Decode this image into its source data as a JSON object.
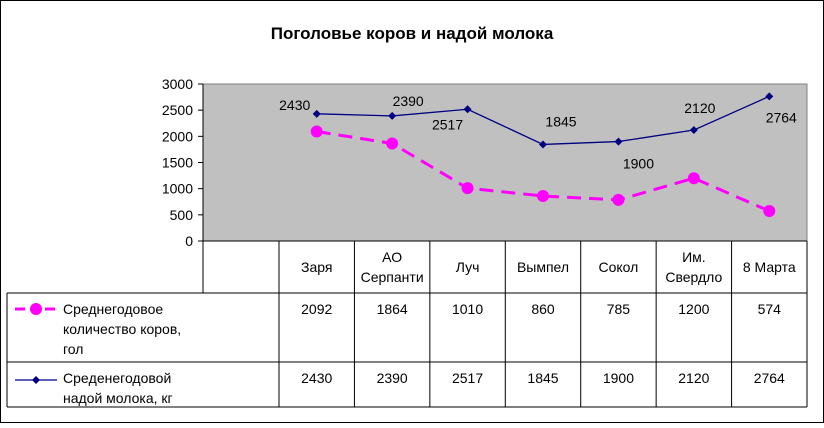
{
  "chart_data": {
    "type": "line",
    "title": "Поголовье коров и надой молока",
    "categories": [
      "Заря",
      "АО Серпанти",
      "Луч",
      "Вымпел",
      "Сокол",
      "Им. Свердло",
      "8 Марта"
    ],
    "category_lines": [
      [
        "Заря"
      ],
      [
        "АО",
        "Серпанти"
      ],
      [
        "Луч"
      ],
      [
        "Вымпел"
      ],
      [
        "Сокол"
      ],
      [
        "Им.",
        "Свердло"
      ],
      [
        "8 Марта"
      ]
    ],
    "ylim": [
      0,
      3000
    ],
    "yticks": [
      0,
      500,
      1000,
      1500,
      2000,
      2500,
      3000
    ],
    "plot_background": "#c0c0c0",
    "data_table": true,
    "series": [
      {
        "name": "Среднегодовое количество коров, гол",
        "name_lines": [
          "Среднегодовое",
          "количество коров,",
          " гол"
        ],
        "values": [
          2092,
          1864,
          1010,
          860,
          785,
          1200,
          574
        ],
        "color": "#ff00ff",
        "line_style": "dashed",
        "marker": "circle",
        "data_labels": false
      },
      {
        "name": "Срeденегодовой надой молока, кг",
        "name_lines": [
          "Срeденегодовой",
          "надой молока, кг"
        ],
        "values": [
          2430,
          2390,
          2517,
          1845,
          1900,
          2120,
          2764
        ],
        "color": "#000080",
        "line_style": "solid",
        "marker": "diamond",
        "data_labels": true
      }
    ]
  }
}
